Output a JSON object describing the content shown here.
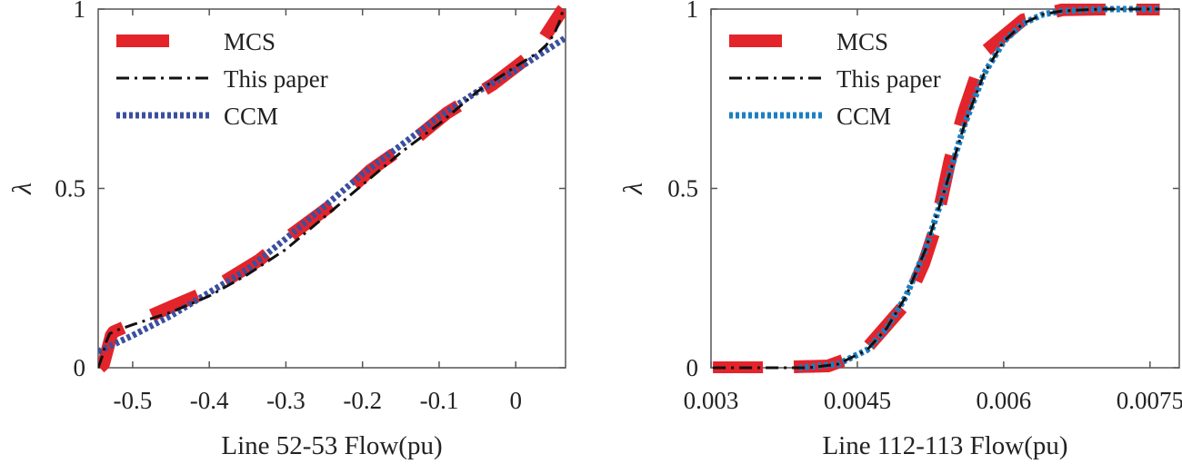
{
  "colors": {
    "mcs": "#e3242b",
    "paper": "#111111",
    "ccm_left": "#3b4fa0",
    "ccm_right": "#1a7fc4",
    "axis": "#555555"
  },
  "chart_data": [
    {
      "type": "line",
      "xlabel": "Line 52-53 Flow(pu)",
      "ylabel": "λ",
      "xlim": [
        -0.545,
        0.065
      ],
      "ylim": [
        0,
        1
      ],
      "xticks": [
        -0.5,
        -0.4,
        -0.3,
        -0.2,
        -0.1,
        0
      ],
      "xtick_labels": [
        "-0.5",
        "-0.4",
        "-0.3",
        "-0.2",
        "-0.1",
        "0"
      ],
      "yticks": [
        0,
        0.5,
        1
      ],
      "ytick_labels": [
        "0",
        "0.5",
        "1"
      ],
      "legend": [
        "MCS",
        "This paper",
        "CCM"
      ],
      "series": [
        {
          "name": "MCS",
          "style": "dash-thick",
          "x": [
            -0.543,
            -0.538,
            -0.533,
            -0.528,
            -0.525,
            -0.45,
            -0.4,
            -0.335,
            -0.3,
            -0.23,
            -0.19,
            -0.13,
            -0.09,
            -0.03,
            0.025,
            0.06,
            0.062
          ],
          "y": [
            0.0,
            0.01,
            0.05,
            0.09,
            0.1,
            0.17,
            0.215,
            0.3,
            0.36,
            0.47,
            0.55,
            0.64,
            0.71,
            0.79,
            0.88,
            0.995,
            1.0
          ]
        },
        {
          "name": "This paper",
          "style": "dashdot",
          "x": [
            -0.545,
            -0.54,
            -0.535,
            -0.53,
            -0.525,
            -0.52,
            -0.5,
            -0.45,
            -0.4,
            -0.35,
            -0.3,
            -0.25,
            -0.2,
            -0.15,
            -0.1,
            -0.05,
            0.0,
            0.03,
            0.04,
            0.05,
            0.058,
            0.062
          ],
          "y": [
            0.0,
            0.03,
            0.07,
            0.095,
            0.1,
            0.105,
            0.12,
            0.155,
            0.2,
            0.26,
            0.33,
            0.42,
            0.51,
            0.6,
            0.68,
            0.77,
            0.84,
            0.88,
            0.9,
            0.93,
            0.97,
            1.0
          ]
        },
        {
          "name": "CCM",
          "style": "dotted",
          "x": [
            -0.545,
            -0.5,
            -0.45,
            -0.4,
            -0.35,
            -0.3,
            -0.25,
            -0.2,
            -0.15,
            -0.1,
            -0.05,
            0.0,
            0.065
          ],
          "y": [
            0.045,
            0.09,
            0.145,
            0.21,
            0.275,
            0.36,
            0.45,
            0.54,
            0.62,
            0.7,
            0.77,
            0.83,
            0.92
          ]
        }
      ]
    },
    {
      "type": "line",
      "xlabel": "Line 112-113 Flow(pu)",
      "ylabel": "λ",
      "xlim": [
        0.003,
        0.0078
      ],
      "ylim": [
        0,
        1
      ],
      "xticks": [
        0.003,
        0.0045,
        0.006,
        0.0075
      ],
      "xtick_labels": [
        "0.003",
        "0.0045",
        "0.006",
        "0.0075"
      ],
      "yticks": [
        0,
        0.5,
        1
      ],
      "ytick_labels": [
        "0",
        "0.5",
        "1"
      ],
      "legend": [
        "MCS",
        "This paper",
        "CCM"
      ],
      "series": [
        {
          "name": "MCS",
          "style": "dash-thick",
          "x": [
            0.00302,
            0.0035,
            0.0042,
            0.00455,
            0.005,
            0.00518,
            0.0053,
            0.00545,
            0.0056,
            0.0058,
            0.0062,
            0.0066,
            0.007,
            0.0076
          ],
          "y": [
            0.0,
            0.0,
            0.005,
            0.04,
            0.18,
            0.29,
            0.39,
            0.58,
            0.72,
            0.88,
            0.97,
            0.998,
            1.0,
            1.0
          ]
        },
        {
          "name": "This paper",
          "style": "dashdot",
          "x": [
            0.00302,
            0.0035,
            0.004,
            0.0043,
            0.0046,
            0.0048,
            0.005,
            0.0052,
            0.0054,
            0.0056,
            0.0058,
            0.006,
            0.0062,
            0.0064,
            0.0066,
            0.007,
            0.0076
          ],
          "y": [
            0.0,
            0.0,
            0.0,
            0.01,
            0.05,
            0.11,
            0.2,
            0.33,
            0.5,
            0.68,
            0.82,
            0.91,
            0.96,
            0.985,
            0.995,
            1.0,
            1.0
          ]
        },
        {
          "name": "CCM",
          "style": "dotted",
          "x": [
            0.0039,
            0.0043,
            0.0046,
            0.0048,
            0.005,
            0.0052,
            0.0054,
            0.0056,
            0.0058,
            0.006,
            0.0062,
            0.0064,
            0.0066,
            0.007,
            0.0076
          ],
          "y": [
            0.0,
            0.01,
            0.05,
            0.11,
            0.2,
            0.33,
            0.5,
            0.68,
            0.82,
            0.91,
            0.96,
            0.985,
            0.995,
            1.0,
            1.0
          ]
        }
      ]
    }
  ]
}
